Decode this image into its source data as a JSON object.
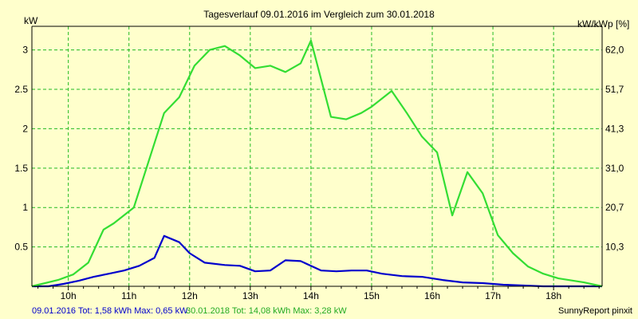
{
  "chart_data": {
    "type": "line",
    "title": "Tagesverlauf 09.01.2016 im Vergleich zum 30.01.2018",
    "ylabel_left": "kW",
    "ylabel_right": "kW/kWp [%]",
    "xlim_hours": [
      9.4,
      18.8
    ],
    "ylim": [
      0,
      3.3
    ],
    "x_tick_labels": [
      "10h",
      "11h",
      "12h",
      "13h",
      "14h",
      "15h",
      "16h",
      "17h",
      "18h"
    ],
    "x_tick_values": [
      10,
      11,
      12,
      13,
      14,
      15,
      16,
      17,
      18
    ],
    "y_tick_labels_left": [
      "0.5",
      "1",
      "1.5",
      "2",
      "2.5",
      "3"
    ],
    "y_tick_values_left": [
      0.5,
      1,
      1.5,
      2,
      2.5,
      3
    ],
    "y_tick_labels_right": [
      "10,3",
      "20,7",
      "31,0",
      "41,3",
      "51,7",
      "62,0"
    ],
    "grid": true,
    "colors": {
      "background": "#ffffcc",
      "grid": "#22bb22",
      "series_2016": "#0000cc",
      "series_2018": "#33dd33"
    },
    "series": [
      {
        "color": "#0000cc",
        "x": [
          9.4,
          9.67,
          9.92,
          10.17,
          10.42,
          10.67,
          10.92,
          11.17,
          11.42,
          11.58,
          11.83,
          12.0,
          12.25,
          12.58,
          12.83,
          13.08,
          13.33,
          13.58,
          13.83,
          14.17,
          14.42,
          14.67,
          14.92,
          15.17,
          15.5,
          15.83,
          16.17,
          16.5,
          16.83,
          17.17,
          17.5,
          17.83,
          18.17,
          18.5,
          18.8
        ],
        "y": [
          0.0,
          0.0,
          0.03,
          0.07,
          0.12,
          0.16,
          0.2,
          0.26,
          0.36,
          0.64,
          0.56,
          0.42,
          0.3,
          0.27,
          0.26,
          0.19,
          0.2,
          0.33,
          0.32,
          0.2,
          0.19,
          0.2,
          0.2,
          0.16,
          0.13,
          0.12,
          0.08,
          0.05,
          0.04,
          0.02,
          0.01,
          0.0,
          0.0,
          0.0,
          0.0
        ]
      },
      {
        "color": "#33dd33",
        "x": [
          9.4,
          9.83,
          10.08,
          10.33,
          10.58,
          10.75,
          11.08,
          11.33,
          11.58,
          11.83,
          12.08,
          12.33,
          12.58,
          12.83,
          13.08,
          13.33,
          13.58,
          13.83,
          14.0,
          14.33,
          14.58,
          14.83,
          15.0,
          15.33,
          15.58,
          15.83,
          16.08,
          16.33,
          16.58,
          16.83,
          17.08,
          17.33,
          17.58,
          17.83,
          18.08,
          18.5,
          18.8
        ],
        "y": [
          0.0,
          0.08,
          0.15,
          0.3,
          0.72,
          0.8,
          1.0,
          1.6,
          2.2,
          2.4,
          2.8,
          3.0,
          3.05,
          2.93,
          2.77,
          2.8,
          2.72,
          2.83,
          3.12,
          2.15,
          2.12,
          2.2,
          2.28,
          2.48,
          2.2,
          1.9,
          1.7,
          0.9,
          1.45,
          1.18,
          0.65,
          0.42,
          0.25,
          0.16,
          0.1,
          0.05,
          0.0
        ]
      }
    ]
  },
  "footer": {
    "left_2016": "09.01.2016 Tot: 1,58 kWh Max: 0,65 kW",
    "left_2018": "30.01.2018 Tot: 14,08 kWh Max: 3,28 kW",
    "right": "SunnyReport pinxit"
  }
}
